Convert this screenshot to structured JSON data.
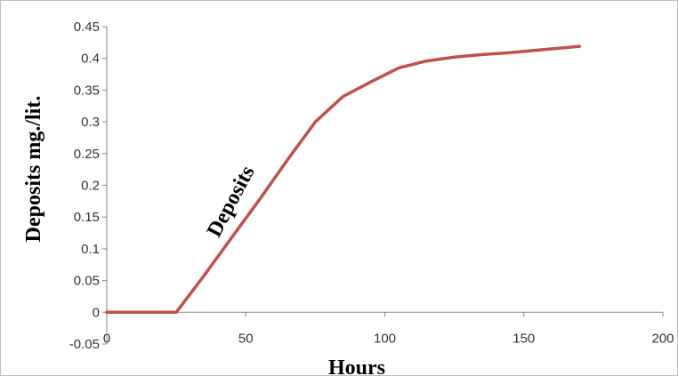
{
  "chart_data": {
    "type": "line",
    "title": "",
    "xlabel": "Hours",
    "ylabel": "Deposits mg./lit.",
    "xlim": [
      0,
      200
    ],
    "ylim": [
      -0.05,
      0.45
    ],
    "x_ticks": [
      0,
      50,
      100,
      150,
      200
    ],
    "y_ticks": [
      -0.05,
      0,
      0.05,
      0.1,
      0.15,
      0.2,
      0.25,
      0.3,
      0.35,
      0.4,
      0.45
    ],
    "y_tick_labels": [
      "-0.05",
      "0",
      "0.05",
      "0.1",
      "0.15",
      "0.2",
      "0.25",
      "0.3",
      "0.35",
      "0.4",
      "0.45"
    ],
    "x_tick_labels": [
      "0",
      "50",
      "100",
      "150",
      "200"
    ],
    "grid": false,
    "legend": "none",
    "line_color": "#c0504d",
    "annotations": [
      {
        "text": "Deposits"
      }
    ],
    "series": [
      {
        "x": [
          0,
          25,
          35,
          45,
          55,
          65,
          75,
          85,
          95,
          105,
          115,
          125,
          135,
          145,
          155,
          165,
          170
        ],
        "y": [
          0,
          0,
          0.058,
          0.118,
          0.178,
          0.24,
          0.3,
          0.34,
          0.363,
          0.385,
          0.396,
          0.402,
          0.406,
          0.409,
          0.413,
          0.417,
          0.419
        ]
      }
    ]
  }
}
